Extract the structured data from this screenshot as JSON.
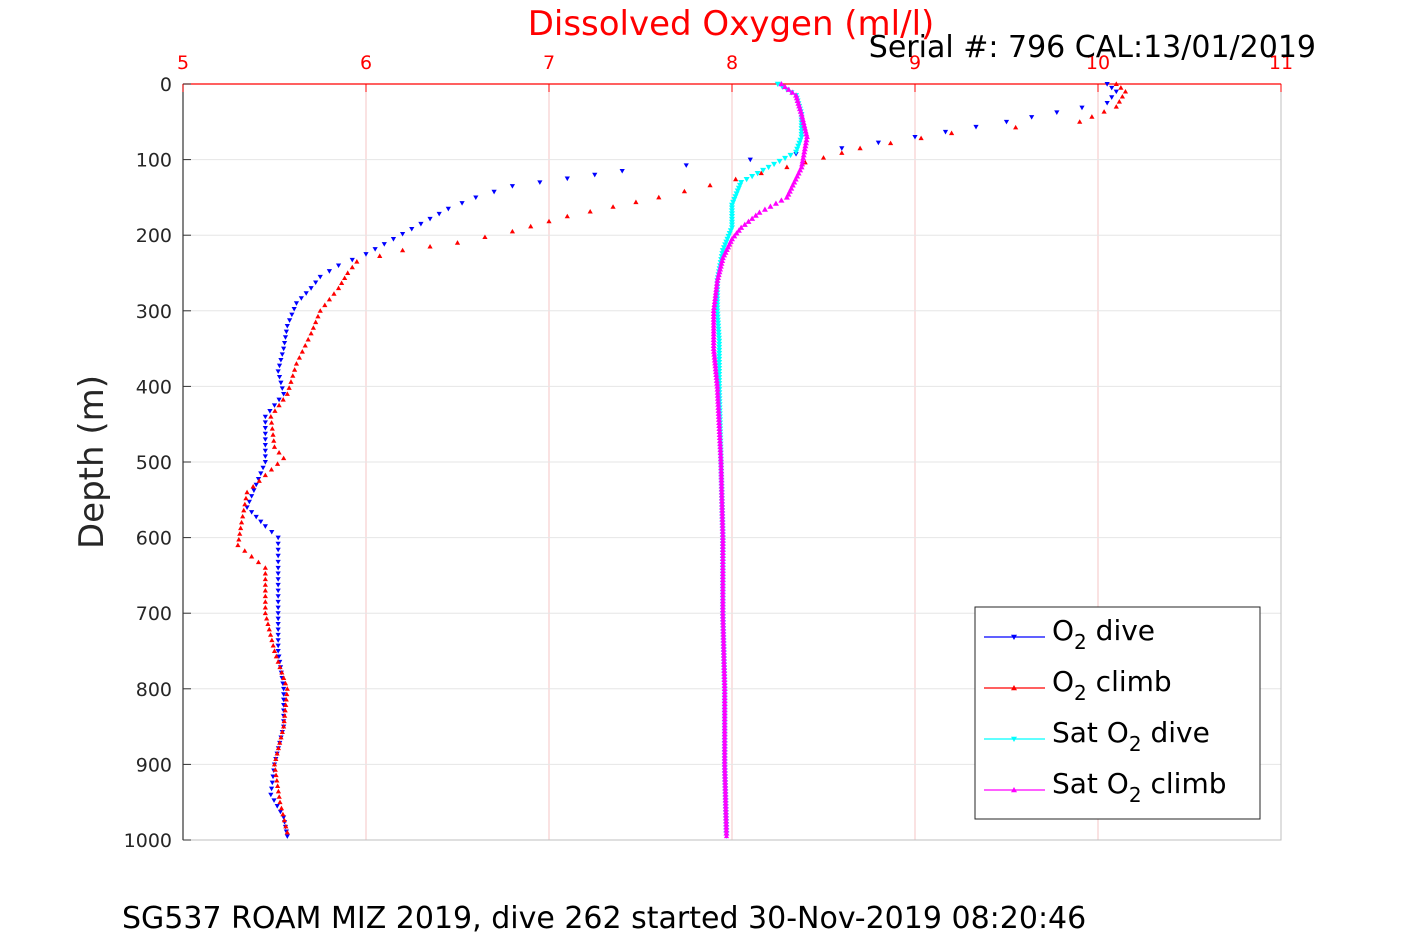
{
  "chart_data": {
    "type": "scatter",
    "title": "Dissolved Oxygen (ml/l)",
    "subtitle": "Serial #: 796  CAL:13/01/2019",
    "caption": "SG537 ROAM MIZ 2019, dive 262 started 30-Nov-2019 08:20:46",
    "ylabel": "Depth (m)",
    "xlim": [
      5,
      11
    ],
    "ylim": [
      0,
      1000
    ],
    "y_reversed": true,
    "x_axis_position": "top",
    "x_tick_labels": [
      "5",
      "6",
      "7",
      "8",
      "9",
      "10",
      "11"
    ],
    "y_tick_labels": [
      "0",
      "100",
      "200",
      "300",
      "400",
      "500",
      "600",
      "700",
      "800",
      "900",
      "1000"
    ],
    "grid": true,
    "legend_position": "bottom-right",
    "colors": {
      "title": "#ff0000",
      "x_ticks": "#ff0000",
      "grid": "#f5c6c6",
      "ygrid": "#e6e6e6"
    },
    "series": [
      {
        "name": "O2 dive",
        "color": "#0000ff",
        "marker": "triangle-down",
        "points": [
          [
            10.05,
            0
          ],
          [
            10.1,
            10
          ],
          [
            10.05,
            25
          ],
          [
            9.5,
            50
          ],
          [
            9.0,
            70
          ],
          [
            8.6,
            85
          ],
          [
            8.1,
            100
          ],
          [
            7.4,
            115
          ],
          [
            7.1,
            125
          ],
          [
            6.8,
            135
          ],
          [
            6.6,
            150
          ],
          [
            6.45,
            165
          ],
          [
            6.3,
            185
          ],
          [
            6.15,
            205
          ],
          [
            6.0,
            225
          ],
          [
            5.85,
            240
          ],
          [
            5.75,
            255
          ],
          [
            5.7,
            270
          ],
          [
            5.62,
            290
          ],
          [
            5.57,
            320
          ],
          [
            5.55,
            350
          ],
          [
            5.52,
            380
          ],
          [
            5.55,
            410
          ],
          [
            5.45,
            440
          ],
          [
            5.45,
            470
          ],
          [
            5.45,
            500
          ],
          [
            5.4,
            530
          ],
          [
            5.35,
            560
          ],
          [
            5.45,
            585
          ],
          [
            5.52,
            600
          ],
          [
            5.52,
            640
          ],
          [
            5.52,
            700
          ],
          [
            5.52,
            750
          ],
          [
            5.55,
            800
          ],
          [
            5.55,
            850
          ],
          [
            5.5,
            900
          ],
          [
            5.48,
            940
          ],
          [
            5.55,
            970
          ],
          [
            5.57,
            995
          ]
        ]
      },
      {
        "name": "O2 climb",
        "color": "#ff0000",
        "marker": "triangle-up",
        "points": [
          [
            10.1,
            0
          ],
          [
            10.15,
            10
          ],
          [
            10.1,
            30
          ],
          [
            9.9,
            50
          ],
          [
            9.2,
            65
          ],
          [
            8.7,
            85
          ],
          [
            8.3,
            110
          ],
          [
            7.6,
            150
          ],
          [
            7.1,
            175
          ],
          [
            6.8,
            195
          ],
          [
            6.5,
            210
          ],
          [
            6.2,
            220
          ],
          [
            5.95,
            235
          ],
          [
            5.9,
            250
          ],
          [
            5.85,
            270
          ],
          [
            5.75,
            300
          ],
          [
            5.7,
            330
          ],
          [
            5.62,
            370
          ],
          [
            5.57,
            410
          ],
          [
            5.48,
            440
          ],
          [
            5.5,
            480
          ],
          [
            5.55,
            495
          ],
          [
            5.35,
            540
          ],
          [
            5.32,
            580
          ],
          [
            5.3,
            610
          ],
          [
            5.45,
            640
          ],
          [
            5.45,
            700
          ],
          [
            5.5,
            750
          ],
          [
            5.57,
            800
          ],
          [
            5.55,
            850
          ],
          [
            5.5,
            900
          ],
          [
            5.53,
            950
          ],
          [
            5.57,
            990
          ]
        ]
      },
      {
        "name": "Sat O2 dive",
        "color": "#00ffff",
        "marker": "triangle-down",
        "points": [
          [
            8.25,
            0
          ],
          [
            8.35,
            15
          ],
          [
            8.38,
            40
          ],
          [
            8.38,
            70
          ],
          [
            8.35,
            90
          ],
          [
            8.2,
            110
          ],
          [
            8.05,
            130
          ],
          [
            8.0,
            160
          ],
          [
            8.0,
            190
          ],
          [
            7.95,
            220
          ],
          [
            7.92,
            260
          ],
          [
            7.92,
            300
          ],
          [
            7.93,
            340
          ],
          [
            7.93,
            400
          ],
          [
            7.94,
            500
          ],
          [
            7.95,
            600
          ],
          [
            7.95,
            700
          ],
          [
            7.96,
            800
          ],
          [
            7.96,
            900
          ],
          [
            7.97,
            995
          ]
        ]
      },
      {
        "name": "Sat O2 climb",
        "color": "#ff00ff",
        "marker": "triangle-up",
        "points": [
          [
            8.27,
            0
          ],
          [
            8.35,
            15
          ],
          [
            8.38,
            40
          ],
          [
            8.41,
            70
          ],
          [
            8.38,
            110
          ],
          [
            8.3,
            150
          ],
          [
            8.15,
            170
          ],
          [
            8.05,
            190
          ],
          [
            8.0,
            205
          ],
          [
            7.95,
            230
          ],
          [
            7.92,
            260
          ],
          [
            7.9,
            300
          ],
          [
            7.9,
            350
          ],
          [
            7.92,
            400
          ],
          [
            7.94,
            500
          ],
          [
            7.95,
            600
          ],
          [
            7.95,
            700
          ],
          [
            7.96,
            800
          ],
          [
            7.96,
            900
          ],
          [
            7.97,
            995
          ]
        ]
      }
    ]
  }
}
